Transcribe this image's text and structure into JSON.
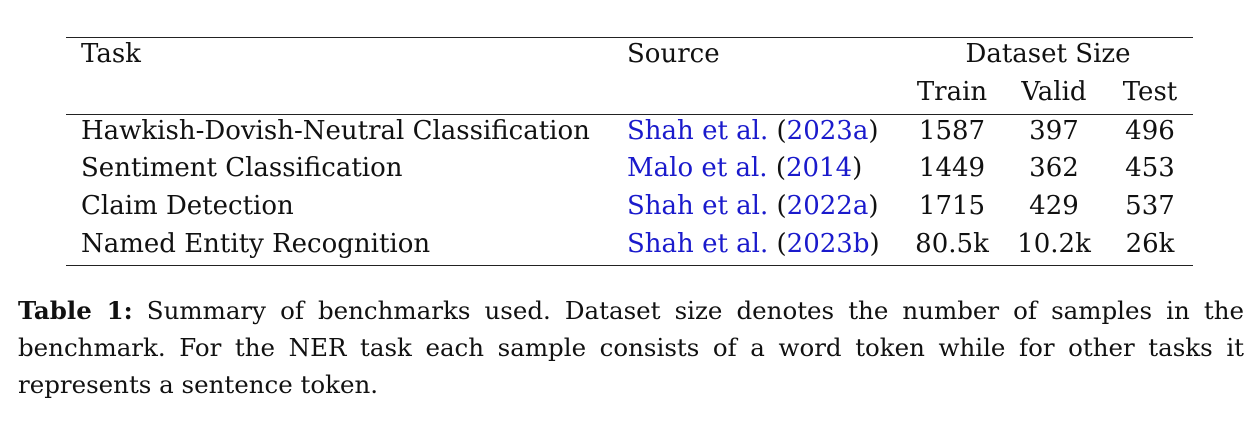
{
  "table": {
    "headers": {
      "task": "Task",
      "source": "Source",
      "dataset_size": "Dataset Size",
      "train": "Train",
      "valid": "Valid",
      "test": "Test"
    },
    "rows": [
      {
        "task": "Hawkish-Dovish-Neutral Classification",
        "source_author": "Shah et al.",
        "source_year": "2023a",
        "train": "1587",
        "valid": "397",
        "test": "496"
      },
      {
        "task": "Sentiment Classification",
        "source_author": "Malo et al.",
        "source_year": "2014",
        "train": "1449",
        "valid": "362",
        "test": "453"
      },
      {
        "task": "Claim Detection",
        "source_author": "Shah et al.",
        "source_year": "2022a",
        "train": "1715",
        "valid": "429",
        "test": "537"
      },
      {
        "task": "Named Entity Recognition",
        "source_author": "Shah et al.",
        "source_year": "2023b",
        "train": "80.5k",
        "valid": "10.2k",
        "test": "26k"
      }
    ]
  },
  "caption": {
    "label": "Table 1:",
    "text": "Summary of benchmarks used. Dataset size denotes the number of samples in the benchmark. For the NER task each sample consists of a word token while for other tasks it represents a sentence token."
  },
  "colors": {
    "citation": "#1a1acc",
    "text": "#111111"
  }
}
